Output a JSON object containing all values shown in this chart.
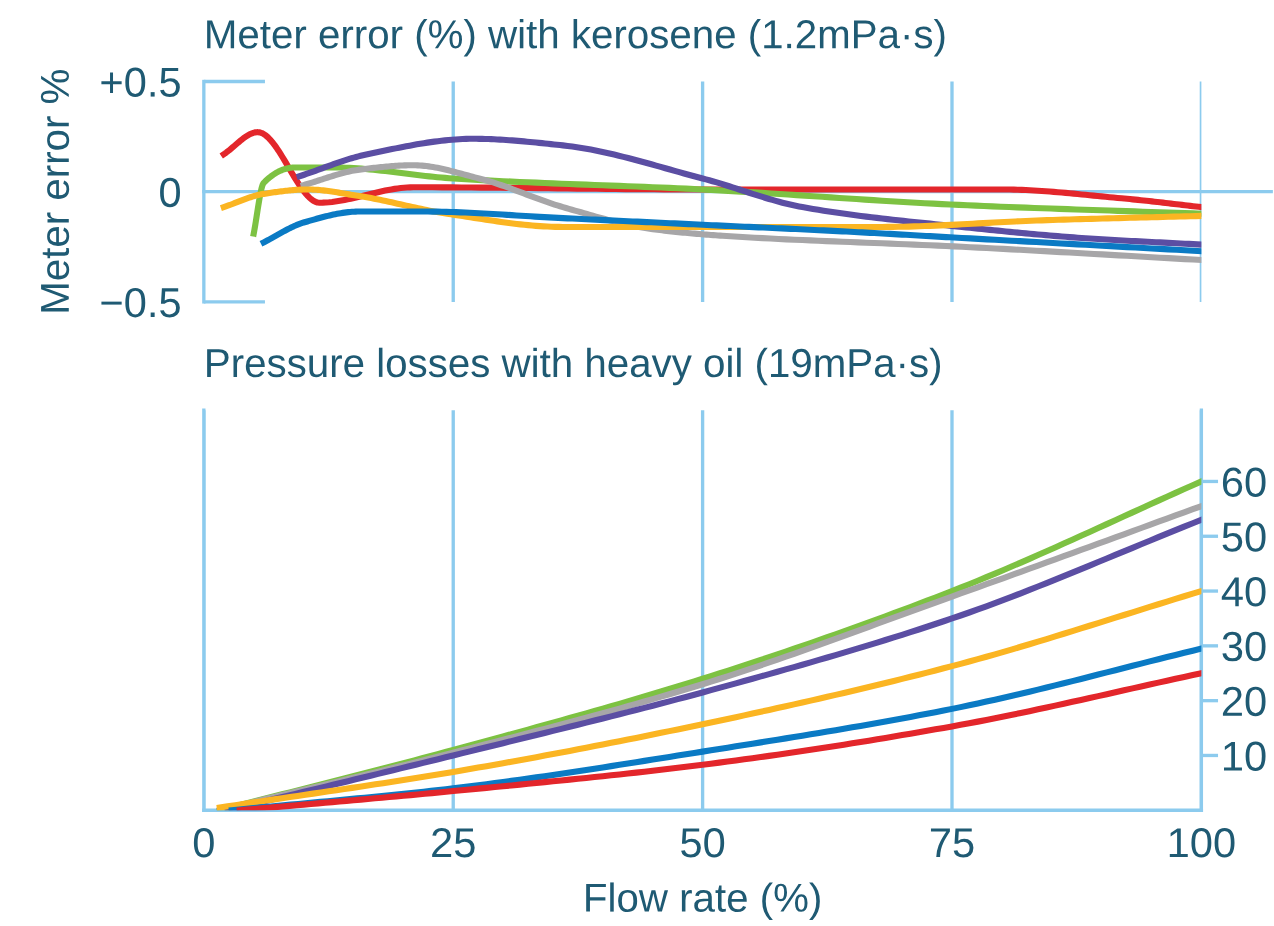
{
  "chart_data": [
    {
      "type": "line",
      "title": "Meter error (%) with kerosene (1.2mPa·s)",
      "ylabel": "Meter error %",
      "xlim": [
        0,
        100
      ],
      "ylim": [
        -0.5,
        0.5
      ],
      "xticks": [
        {
          "value": 25,
          "label": null
        },
        {
          "value": 50,
          "label": null
        },
        {
          "value": 75,
          "label": null
        },
        {
          "value": 100,
          "label": null
        }
      ],
      "yticks": [
        {
          "value": 0.5,
          "label": "+0.5"
        },
        0,
        {
          "value": -0.5,
          "label": "−0.5"
        }
      ],
      "tick_labels": "y",
      "grid": "x",
      "ref_lines": [
        {
          "axis": "y",
          "value": 0,
          "color": "#8ccbee"
        }
      ],
      "series": [
        {
          "color": "#e3262b",
          "x": [
            2,
            5.4,
            11.6,
            21,
            50,
            80,
            92,
            100
          ],
          "values": [
            0.17,
            0.27,
            -0.05,
            0.02,
            0.01,
            0.01,
            -0.03,
            -0.07
          ]
        },
        {
          "color": "#7dc242",
          "x": [
            5,
            6,
            9.2,
            13,
            25,
            50,
            75.7,
            100
          ],
          "values": [
            -0.19,
            0.04,
            0.11,
            0.11,
            0.06,
            0.01,
            -0.06,
            -0.1
          ]
        },
        {
          "color": "#5b4ea3",
          "x": [
            9.6,
            16.4,
            27,
            36,
            50,
            60,
            76,
            88,
            100
          ],
          "values": [
            0.07,
            0.17,
            0.24,
            0.21,
            0.06,
            -0.07,
            -0.16,
            -0.21,
            -0.24
          ]
        },
        {
          "color": "#a7a6a8",
          "x": [
            10,
            15.6,
            21,
            27.6,
            36,
            45,
            52,
            76,
            100
          ],
          "values": [
            0.03,
            0.1,
            0.12,
            0.06,
            -0.07,
            -0.17,
            -0.2,
            -0.25,
            -0.31
          ]
        },
        {
          "color": "#fbb522",
          "x": [
            2,
            6,
            10.4,
            15.6,
            24.4,
            36,
            50,
            68,
            84,
            100
          ],
          "values": [
            -0.07,
            -0.01,
            0.01,
            -0.02,
            -0.1,
            -0.16,
            -0.16,
            -0.16,
            -0.13,
            -0.11
          ]
        },
        {
          "color": "#0a7ac4",
          "x": [
            6,
            10,
            15.6,
            22,
            36,
            50,
            64,
            76,
            100
          ],
          "values": [
            -0.23,
            -0.14,
            -0.09,
            -0.09,
            -0.12,
            -0.15,
            -0.18,
            -0.21,
            -0.27
          ]
        }
      ]
    },
    {
      "type": "line",
      "title": "Pressure losses with heavy oil (19mPa·s)",
      "xlabel": "Flow rate (%)",
      "xlim": [
        0,
        100
      ],
      "ylim": [
        0,
        73
      ],
      "xticks": [
        0,
        25,
        50,
        75,
        100
      ],
      "yticks": [
        10,
        20,
        30,
        40,
        50,
        60
      ],
      "grid": "x",
      "series": [
        {
          "color": "#7dc242",
          "x": [
            1.6,
            25,
            50,
            75,
            100
          ],
          "values": [
            0,
            11,
            24,
            40,
            60
          ]
        },
        {
          "color": "#a7a6a8",
          "x": [
            1.6,
            25,
            50,
            75,
            100
          ],
          "values": [
            0,
            10.5,
            23,
            39,
            55.5
          ]
        },
        {
          "color": "#5b4ea3",
          "x": [
            2.4,
            25,
            50,
            75,
            100
          ],
          "values": [
            0,
            10,
            21.5,
            35,
            53
          ]
        },
        {
          "color": "#fbb522",
          "x": [
            1.6,
            25,
            50,
            75,
            100
          ],
          "values": [
            0.5,
            7,
            15.7,
            26.3,
            40
          ]
        },
        {
          "color": "#0a7ac4",
          "x": [
            2.8,
            25,
            50,
            75,
            100
          ],
          "values": [
            0,
            4,
            10.7,
            18.5,
            29.5
          ]
        },
        {
          "color": "#e3262b",
          "x": [
            3.6,
            25,
            50,
            75,
            100
          ],
          "values": [
            0,
            3.5,
            8.3,
            15.3,
            25
          ]
        }
      ]
    }
  ]
}
